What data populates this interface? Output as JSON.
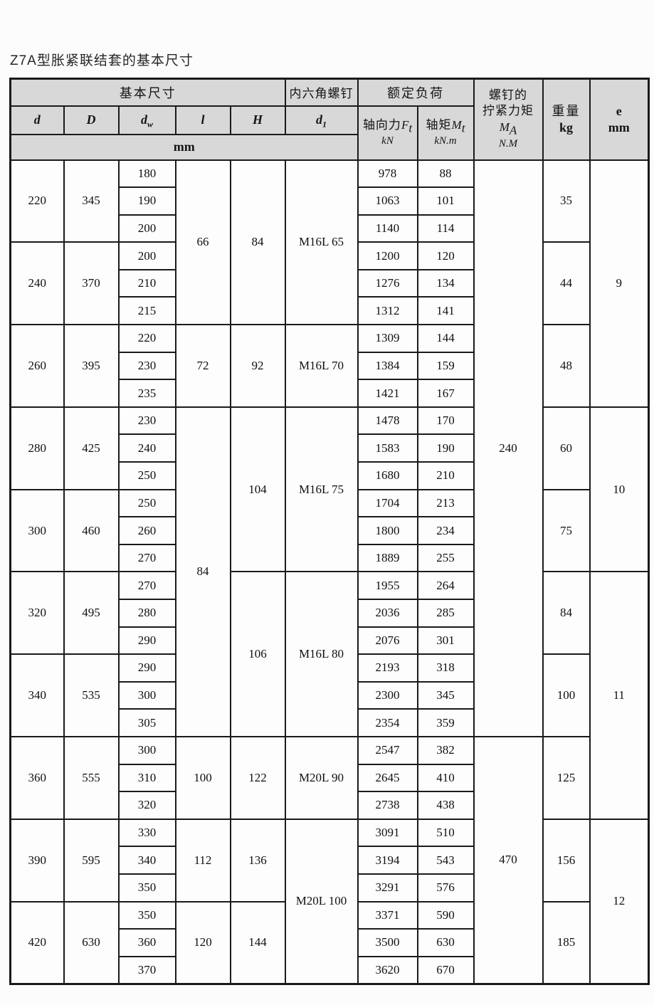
{
  "page": {
    "title": "Z7A型胀紧联结套的基本尺寸"
  },
  "header": {
    "group_basic": "基本尺寸",
    "group_hex_screw": "内六角螺钉",
    "group_rated_load": "额定负荷",
    "ma_line1": "螺钉的",
    "ma_line2": "拧紧力矩",
    "ma_sym": "M",
    "ma_sub": "A",
    "ma_unit": "N.M",
    "weight_label": "重量",
    "weight_unit": "kg",
    "e_sym": "e",
    "e_unit": "mm",
    "col_d": "d",
    "col_D": "D",
    "col_dw_base": "d",
    "col_dw_sub": "w",
    "col_l": "l",
    "col_H": "H",
    "col_d1_base": "d",
    "col_d1_sub": "1",
    "axial_label": "轴向力",
    "axial_sym": "F",
    "axial_sub": "t",
    "axial_unit": "kN",
    "torque_label": "轴矩",
    "torque_sym": "M",
    "torque_sub": "t",
    "torque_unit": "kN.m",
    "unit_mm": "mm"
  },
  "table": {
    "column_names": [
      "d",
      "D",
      "dw",
      "l",
      "H",
      "d1",
      "axial_force_Ft_kN",
      "torque_Mt_kNm",
      "tightening_torque_MA_NM",
      "weight_kg",
      "e_mm"
    ],
    "body_rows": [
      [
        {
          "t": "220",
          "rs": 3
        },
        {
          "t": "345",
          "rs": 3
        },
        {
          "t": "180"
        },
        {
          "t": "66",
          "rs": 6
        },
        {
          "t": "84",
          "rs": 6
        },
        {
          "t": "M16L 65",
          "rs": 6
        },
        {
          "t": "978"
        },
        {
          "t": "88"
        },
        {
          "t": "240",
          "rs": 21
        },
        {
          "t": "35",
          "rs": 3
        },
        {
          "t": "9",
          "rs": 9
        }
      ],
      [
        {
          "t": "190"
        },
        {
          "t": "1063"
        },
        {
          "t": "101"
        }
      ],
      [
        {
          "t": "200"
        },
        {
          "t": "1140"
        },
        {
          "t": "114"
        }
      ],
      [
        {
          "t": "240",
          "rs": 3
        },
        {
          "t": "370",
          "rs": 3
        },
        {
          "t": "200"
        },
        {
          "t": "1200"
        },
        {
          "t": "120"
        },
        {
          "t": "44",
          "rs": 3
        }
      ],
      [
        {
          "t": "210"
        },
        {
          "t": "1276"
        },
        {
          "t": "134"
        }
      ],
      [
        {
          "t": "215"
        },
        {
          "t": "1312"
        },
        {
          "t": "141"
        }
      ],
      [
        {
          "t": "260",
          "rs": 3
        },
        {
          "t": "395",
          "rs": 3
        },
        {
          "t": "220"
        },
        {
          "t": "72",
          "rs": 3
        },
        {
          "t": "92",
          "rs": 3
        },
        {
          "t": "M16L 70",
          "rs": 3
        },
        {
          "t": "1309"
        },
        {
          "t": "144"
        },
        {
          "t": "48",
          "rs": 3
        }
      ],
      [
        {
          "t": "230"
        },
        {
          "t": "1384"
        },
        {
          "t": "159"
        }
      ],
      [
        {
          "t": "235"
        },
        {
          "t": "1421"
        },
        {
          "t": "167"
        }
      ],
      [
        {
          "t": "280",
          "rs": 3
        },
        {
          "t": "425",
          "rs": 3
        },
        {
          "t": "230"
        },
        {
          "t": "84",
          "rs": 12
        },
        {
          "t": "104",
          "rs": 6
        },
        {
          "t": "M16L 75",
          "rs": 6
        },
        {
          "t": "1478"
        },
        {
          "t": "170"
        },
        {
          "t": "60",
          "rs": 3
        },
        {
          "t": "10",
          "rs": 6
        }
      ],
      [
        {
          "t": "240"
        },
        {
          "t": "1583"
        },
        {
          "t": "190"
        }
      ],
      [
        {
          "t": "250"
        },
        {
          "t": "1680"
        },
        {
          "t": "210"
        }
      ],
      [
        {
          "t": "300",
          "rs": 3
        },
        {
          "t": "460",
          "rs": 3
        },
        {
          "t": "250"
        },
        {
          "t": "1704"
        },
        {
          "t": "213"
        },
        {
          "t": "75",
          "rs": 3
        }
      ],
      [
        {
          "t": "260"
        },
        {
          "t": "1800"
        },
        {
          "t": "234"
        }
      ],
      [
        {
          "t": "270"
        },
        {
          "t": "1889"
        },
        {
          "t": "255"
        }
      ],
      [
        {
          "t": "320",
          "rs": 3
        },
        {
          "t": "495",
          "rs": 3
        },
        {
          "t": "270"
        },
        {
          "t": "106",
          "rs": 6
        },
        {
          "t": "M16L 80",
          "rs": 6
        },
        {
          "t": "1955"
        },
        {
          "t": "264"
        },
        {
          "t": "84",
          "rs": 3
        },
        {
          "t": "11",
          "rs": 9
        }
      ],
      [
        {
          "t": "280"
        },
        {
          "t": "2036"
        },
        {
          "t": "285"
        }
      ],
      [
        {
          "t": "290"
        },
        {
          "t": "2076"
        },
        {
          "t": "301"
        }
      ],
      [
        {
          "t": "340",
          "rs": 3
        },
        {
          "t": "535",
          "rs": 3
        },
        {
          "t": "290"
        },
        {
          "t": "2193"
        },
        {
          "t": "318"
        },
        {
          "t": "100",
          "rs": 3
        }
      ],
      [
        {
          "t": "300"
        },
        {
          "t": "2300"
        },
        {
          "t": "345"
        }
      ],
      [
        {
          "t": "305"
        },
        {
          "t": "2354"
        },
        {
          "t": "359"
        }
      ],
      [
        {
          "t": "360",
          "rs": 3
        },
        {
          "t": "555",
          "rs": 3
        },
        {
          "t": "300"
        },
        {
          "t": "100",
          "rs": 3
        },
        {
          "t": "122",
          "rs": 3
        },
        {
          "t": "M20L 90",
          "rs": 3
        },
        {
          "t": "2547"
        },
        {
          "t": "382"
        },
        {
          "t": "470",
          "rs": 9
        },
        {
          "t": "125",
          "rs": 3
        }
      ],
      [
        {
          "t": "310"
        },
        {
          "t": "2645"
        },
        {
          "t": "410"
        }
      ],
      [
        {
          "t": "320"
        },
        {
          "t": "2738"
        },
        {
          "t": "438"
        }
      ],
      [
        {
          "t": "390",
          "rs": 3
        },
        {
          "t": "595",
          "rs": 3
        },
        {
          "t": "330"
        },
        {
          "t": "112",
          "rs": 3
        },
        {
          "t": "136",
          "rs": 3
        },
        {
          "t": "M20L 100",
          "rs": 6
        },
        {
          "t": "3091"
        },
        {
          "t": "510"
        },
        {
          "t": "156",
          "rs": 3
        },
        {
          "t": "12",
          "rs": 6
        }
      ],
      [
        {
          "t": "340"
        },
        {
          "t": "3194"
        },
        {
          "t": "543"
        }
      ],
      [
        {
          "t": "350"
        },
        {
          "t": "3291"
        },
        {
          "t": "576"
        }
      ],
      [
        {
          "t": "420",
          "rs": 3
        },
        {
          "t": "630",
          "rs": 3
        },
        {
          "t": "350"
        },
        {
          "t": "120",
          "rs": 3
        },
        {
          "t": "144",
          "rs": 3
        },
        {
          "t": "3371"
        },
        {
          "t": "590"
        },
        {
          "t": "185",
          "rs": 3
        }
      ],
      [
        {
          "t": "360"
        },
        {
          "t": "3500"
        },
        {
          "t": "630"
        }
      ],
      [
        {
          "t": "370"
        },
        {
          "t": "3620"
        },
        {
          "t": "670"
        }
      ]
    ]
  }
}
